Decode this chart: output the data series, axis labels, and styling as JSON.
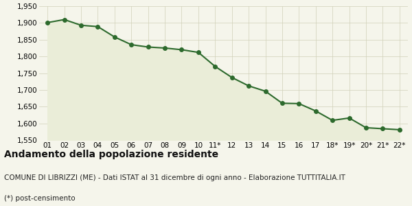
{
  "x_labels": [
    "01",
    "02",
    "03",
    "04",
    "05",
    "06",
    "07",
    "08",
    "09",
    "10",
    "11*",
    "12",
    "13",
    "14",
    "15",
    "16",
    "17",
    "18*",
    "19*",
    "20*",
    "21*",
    "22*"
  ],
  "y_values": [
    1901,
    1910,
    1893,
    1889,
    1858,
    1835,
    1828,
    1825,
    1820,
    1812,
    1770,
    1737,
    1712,
    1696,
    1660,
    1659,
    1637,
    1609,
    1616,
    1587,
    1584,
    1581
  ],
  "line_color": "#2d6a2d",
  "fill_color": "#eaedd8",
  "marker": "o",
  "marker_size": 4,
  "line_width": 1.5,
  "ylim": [
    1550,
    1950
  ],
  "yticks": [
    1550,
    1600,
    1650,
    1700,
    1750,
    1800,
    1850,
    1900,
    1950
  ],
  "background_color": "#f5f5eb",
  "grid_color": "#d0d0b8",
  "title": "Andamento della popolazione residente",
  "subtitle": "COMUNE DI LIBRIZZI (ME) - Dati ISTAT al 31 dicembre di ogni anno - Elaborazione TUTTITALIA.IT",
  "footnote": "(*) post-censimento",
  "title_fontsize": 10,
  "subtitle_fontsize": 7.5,
  "footnote_fontsize": 7.5,
  "tick_fontsize": 7.5
}
